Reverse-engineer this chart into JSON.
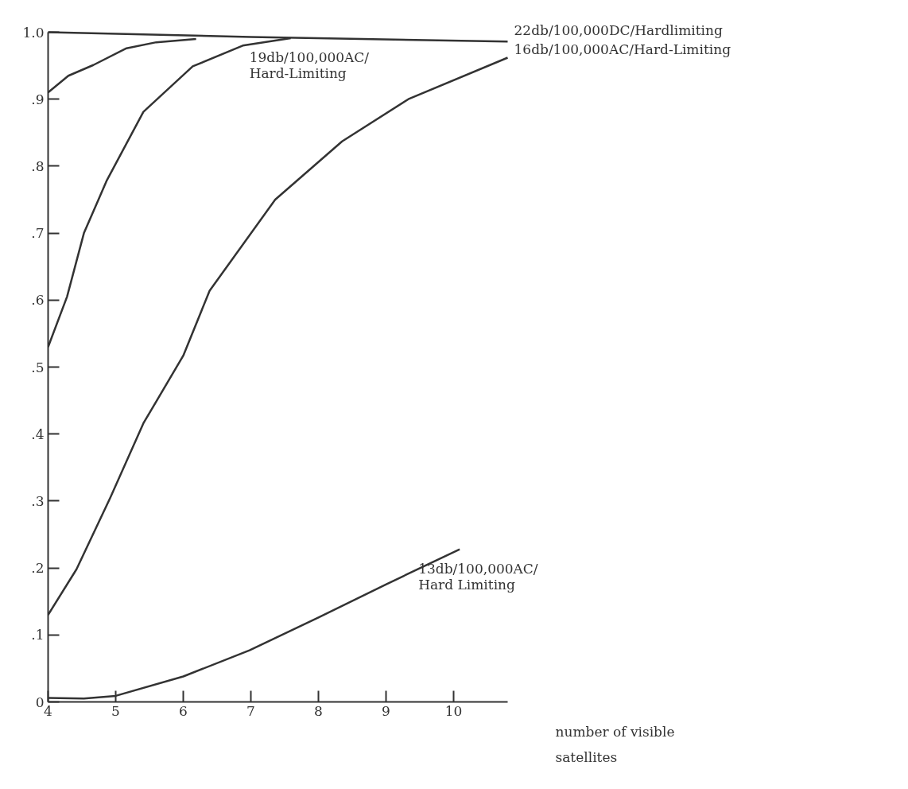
{
  "chart_data": {
    "type": "line",
    "xlabel": "number of visible satellites",
    "xlim": [
      4,
      10.8
    ],
    "xticks": [
      4,
      5,
      6,
      7,
      8,
      9,
      10
    ],
    "ylim": [
      0,
      1.0
    ],
    "yticks": [
      {
        "value": 0,
        "label": "0"
      },
      {
        "value": 0.1,
        "label": ".1"
      },
      {
        "value": 0.2,
        "label": ".2"
      },
      {
        "value": 0.3,
        "label": ".3"
      },
      {
        "value": 0.4,
        "label": ".4"
      },
      {
        "value": 0.5,
        "label": ".5"
      },
      {
        "value": 0.6,
        "label": ".6"
      },
      {
        "value": 0.7,
        "label": ".7"
      },
      {
        "value": 0.8,
        "label": ".8"
      },
      {
        "value": 0.9,
        "label": ".9"
      },
      {
        "value": 1.0,
        "label": "1.0"
      }
    ],
    "grid": false,
    "marker": "none",
    "line_style": "solid",
    "series": [
      {
        "name": "22db/100,000DC/Hardlimiting",
        "color": "#333333",
        "x": [
          4,
          7,
          10.8
        ],
        "values": [
          1.0,
          0.993,
          0.986
        ]
      },
      {
        "color": "#333333",
        "x": [
          4,
          4.3,
          4.67,
          5.16,
          5.6,
          6.19
        ],
        "values": [
          0.91,
          0.935,
          0.951,
          0.976,
          0.985,
          0.99
        ]
      },
      {
        "name": "19db/100,000AC/Hard-Limiting",
        "color": "#333333",
        "x": [
          4,
          4.28,
          4.53,
          4.87,
          5.41,
          6.14,
          6.88,
          7.59
        ],
        "values": [
          0.53,
          0.605,
          0.7,
          0.779,
          0.881,
          0.949,
          0.98,
          0.991
        ]
      },
      {
        "name": "16db/100,000AC/Hard-Limiting",
        "color": "#333333",
        "x": [
          4,
          4.42,
          4.92,
          5.41,
          6.0,
          6.39,
          7.36,
          8.35,
          9.33,
          10.8
        ],
        "values": [
          0.13,
          0.198,
          0.305,
          0.416,
          0.517,
          0.614,
          0.75,
          0.837,
          0.9,
          0.962
        ]
      },
      {
        "name": "13db/100,000AC/Hard Limiting",
        "color": "#333333",
        "x": [
          4,
          4.53,
          5.0,
          6.0,
          6.98,
          8.0,
          9.01,
          10.09
        ],
        "values": [
          0.006,
          0.005,
          0.009,
          0.038,
          0.077,
          0.126,
          0.176,
          0.228
        ]
      }
    ]
  }
}
